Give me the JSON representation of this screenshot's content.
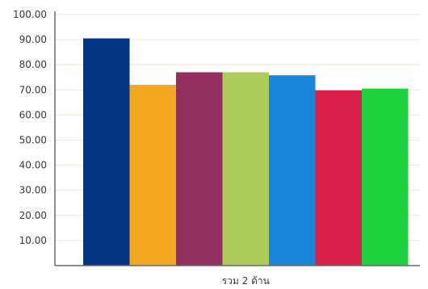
{
  "chart_data": {
    "type": "bar",
    "categories": [
      "รวม 2 ด้าน"
    ],
    "series": [
      {
        "values": [
          90.5
        ],
        "color": "#043585"
      },
      {
        "values": [
          72.0
        ],
        "color": "#f5a623"
      },
      {
        "values": [
          77.0
        ],
        "color": "#93305d"
      },
      {
        "values": [
          77.0
        ],
        "color": "#aecb5c"
      },
      {
        "values": [
          75.8
        ],
        "color": "#1b85d8"
      },
      {
        "values": [
          69.8
        ],
        "color": "#d81e49"
      },
      {
        "values": [
          70.5
        ],
        "color": "#1ed13e"
      }
    ],
    "yticks": [
      "10.00",
      "20.00",
      "30.00",
      "40.00",
      "50.00",
      "60.00",
      "70.00",
      "80.00",
      "90.00",
      "100.00"
    ],
    "ylim": [
      0,
      100
    ],
    "grid": true,
    "legend": "none",
    "title": "",
    "xlabel": "",
    "ylabel": ""
  }
}
